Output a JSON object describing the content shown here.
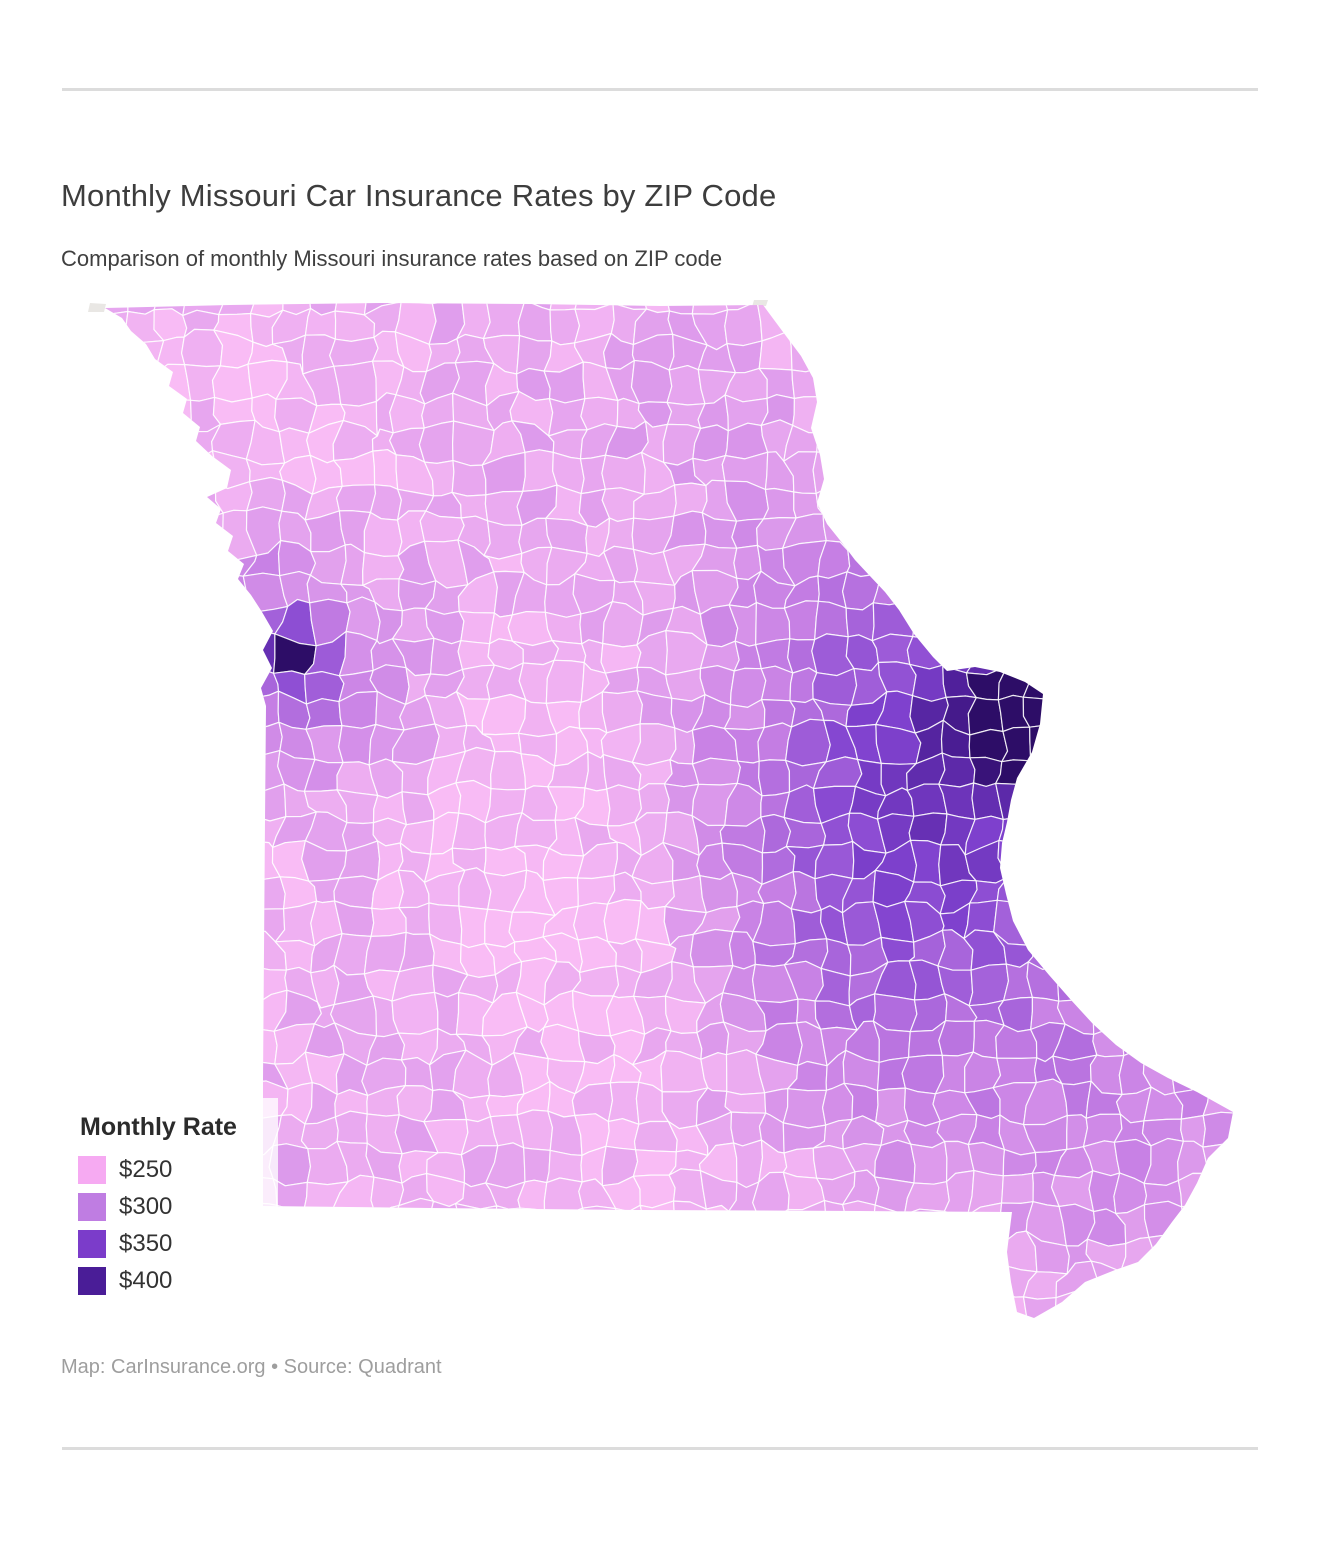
{
  "page": {
    "title": "Monthly Missouri Car Insurance Rates by ZIP Code",
    "subtitle": "Comparison of monthly Missouri insurance rates based on ZIP code",
    "attribution": "Map: CarInsurance.org • Source: Quadrant"
  },
  "legend": {
    "title": "Monthly Rate",
    "items": [
      {
        "label": "$250",
        "color": "#f6aaf2"
      },
      {
        "label": "$300",
        "color": "#bf7de2"
      },
      {
        "label": "$350",
        "color": "#7b3cca"
      },
      {
        "label": "$400",
        "color": "#4a1d97"
      }
    ]
  },
  "map": {
    "region": "Missouri",
    "unit": "ZIP code",
    "metric": "Monthly car insurance rate (USD)",
    "render": {
      "base": 277,
      "wave": 12,
      "noise": 24,
      "color_stops": [
        [
          250,
          "#f9bcf5"
        ],
        [
          300,
          "#c67fe4"
        ],
        [
          350,
          "#8042cf"
        ],
        [
          400,
          "#4e1f99"
        ],
        [
          435,
          "#2d0d67"
        ]
      ],
      "spots": [
        [
          "st-louis-core",
          1029,
          726,
          36,
          170
        ],
        [
          "st-louis-north",
          1014,
          700,
          60,
          70
        ],
        [
          "st-louis-metro",
          968,
          762,
          110,
          52
        ],
        [
          "st-louis-corridor",
          915,
          848,
          155,
          38
        ],
        [
          "south-stl-hills",
          905,
          1040,
          145,
          30
        ],
        [
          "se-lowlands",
          1135,
          1125,
          95,
          22
        ],
        [
          "kansas-city-core",
          283,
          651,
          14,
          160
        ],
        [
          "kansas-city-inner",
          289,
          663,
          38,
          62
        ],
        [
          "kansas-city-metro",
          318,
          682,
          85,
          32
        ],
        [
          "st-joseph",
          252,
          568,
          40,
          24
        ],
        [
          "mid-missouri",
          860,
          605,
          90,
          14
        ],
        [
          "central-pale",
          560,
          735,
          115,
          -20
        ],
        [
          "south-central-pale",
          618,
          962,
          100,
          -22
        ],
        [
          "northeast-pale",
          1165,
          525,
          140,
          -12
        ],
        [
          "southern-pale",
          792,
          1182,
          150,
          -13
        ],
        [
          "northwest-pale",
          300,
          388,
          85,
          -11
        ]
      ]
    }
  },
  "chart_data": {
    "type": "choropleth_map",
    "title": "Monthly Missouri Car Insurance Rates by ZIP Code",
    "subtitle": "Comparison of monthly Missouri insurance rates based on ZIP code",
    "geography": "State of Missouri, USA, subdivided into ZIP code areas",
    "legend_title": "Monthly Rate",
    "legend_position": "bottom-left",
    "bins": [
      {
        "label": "$250",
        "color": "#f6aaf2"
      },
      {
        "label": "$300",
        "color": "#bf7de2"
      },
      {
        "label": "$350",
        "color": "#7b3cca"
      },
      {
        "label": "$400",
        "color": "#4a1d97"
      }
    ],
    "value_range_usd": [
      250,
      400
    ],
    "observations": [
      {
        "area": "St. Louis city / inner metro (eastern bulge of state)",
        "approx_rate": "$400+ (darkest region on map)"
      },
      {
        "area": "St. Louis suburbs and corridor to the southwest",
        "approx_rate": "$300–$350"
      },
      {
        "area": "Kansas City core (western border)",
        "approx_rate": "$400 small dark cluster"
      },
      {
        "area": "Kansas City surrounding metro",
        "approx_rate": "$300–$350"
      },
      {
        "area": "Hills south of St. Louis / southeast lowlands",
        "approx_rate": "$300–$325"
      },
      {
        "area": "Rural north, central, west and southern Missouri",
        "approx_rate": "$250–$300 (pink to light purple)"
      }
    ],
    "attribution": "Map: CarInsurance.org • Source: Quadrant"
  }
}
